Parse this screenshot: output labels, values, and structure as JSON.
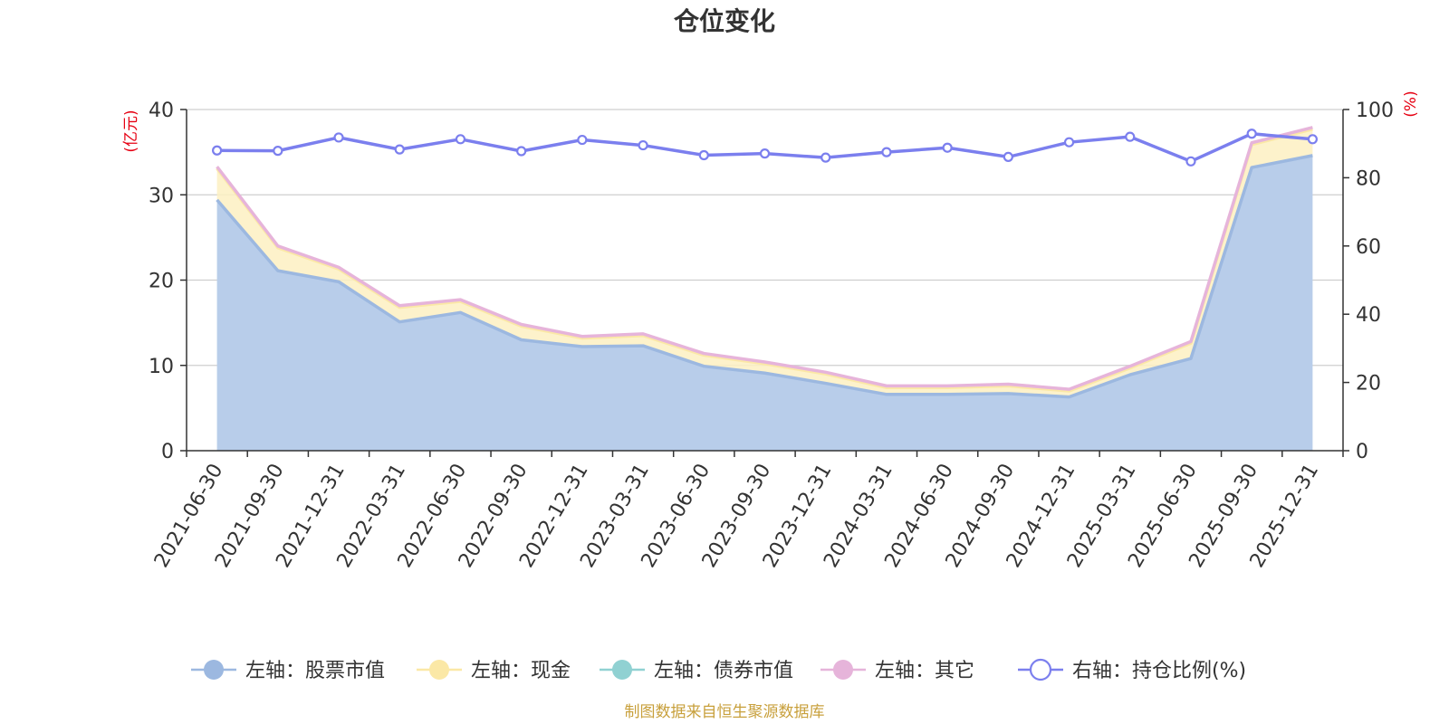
{
  "chart_data": {
    "type": "area",
    "title": "仓位变化",
    "categories": [
      "2021-06-30",
      "2021-09-30",
      "2021-12-31",
      "2022-03-31",
      "2022-06-30",
      "2022-09-30",
      "2022-12-31",
      "2023-03-31",
      "2023-06-30",
      "2023-09-30",
      "2023-12-31",
      "2024-03-31",
      "2024-06-30",
      "2024-09-30",
      "2024-12-31",
      "2025-03-31",
      "2025-06-30",
      "2025-09-30",
      "2025-12-31"
    ],
    "left_axis": {
      "unit": "(亿元)",
      "ylim": [
        0,
        40
      ],
      "ticks": [
        "0",
        "10",
        "20",
        "30",
        "40"
      ]
    },
    "right_axis": {
      "unit": "(%)",
      "ylim": [
        0,
        100
      ],
      "ticks": [
        "0",
        "20",
        "40",
        "60",
        "80",
        "100"
      ]
    },
    "grid": true,
    "legend_position": "bottom",
    "series": [
      {
        "name": "左轴：股票市值",
        "axis": "left",
        "color": "#9cb8e0",
        "fill": "#b8cdea",
        "values": [
          29.4,
          21.1,
          19.8,
          15.1,
          16.2,
          13.0,
          12.2,
          12.3,
          9.9,
          9.1,
          7.9,
          6.6,
          6.6,
          6.7,
          6.3,
          8.9,
          10.8,
          33.2,
          34.6
        ]
      },
      {
        "name": "左轴：现金",
        "axis": "left",
        "color": "#fbe8a6",
        "fill": "#fdf0c2",
        "values": [
          3.7,
          2.7,
          1.5,
          1.7,
          1.3,
          1.6,
          1.0,
          1.2,
          1.3,
          1.1,
          1.1,
          0.8,
          0.8,
          0.9,
          0.7,
          0.8,
          1.8,
          2.7,
          3.1
        ]
      },
      {
        "name": "左轴：债券市值",
        "axis": "left",
        "color": "#90d1d2",
        "fill": "#90d1d2",
        "values": [
          0,
          0,
          0,
          0,
          0,
          0,
          0,
          0,
          0,
          0,
          0,
          0,
          0,
          0,
          0,
          0,
          0,
          0,
          0
        ]
      },
      {
        "name": "左轴：其它",
        "axis": "left",
        "color": "#e6b4da",
        "fill": "#e6b4da",
        "values": [
          0.2,
          0.2,
          0.2,
          0.2,
          0.2,
          0.2,
          0.2,
          0.2,
          0.2,
          0.2,
          0.2,
          0.2,
          0.2,
          0.2,
          0.2,
          0.2,
          0.2,
          0.2,
          0.2
        ]
      },
      {
        "name": "右轴：持仓比例(%)",
        "axis": "right",
        "color": "#7b7fee",
        "values": [
          88.0,
          87.9,
          91.8,
          88.3,
          91.3,
          87.8,
          91.1,
          89.5,
          86.6,
          87.1,
          85.9,
          87.5,
          88.8,
          86.1,
          90.4,
          92.0,
          84.8,
          92.9,
          91.3
        ]
      }
    ]
  },
  "source_note": "制图数据来自恒生聚源数据库"
}
